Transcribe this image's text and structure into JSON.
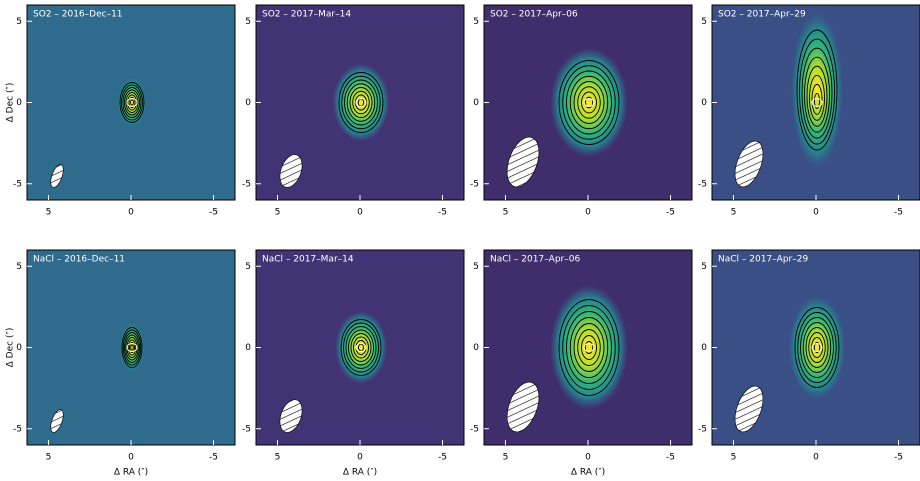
{
  "chart_data": [
    {
      "type": "image",
      "title": "SO2 – 2016–Dec–11",
      "ylabel": "Δ Dec (″)",
      "xlim": [
        6.3,
        -6.3
      ],
      "ylim": [
        -6,
        6
      ],
      "xticks": [
        5,
        0,
        -5
      ],
      "yticks": [
        5,
        0,
        -5
      ]
    },
    {
      "type": "image",
      "title": "SO2 – 2017–Mar–14",
      "xlim": [
        6.3,
        -6.3
      ],
      "ylim": [
        -6,
        6
      ],
      "xticks": [
        5,
        0,
        -5
      ],
      "yticks": [
        5,
        0,
        -5
      ]
    },
    {
      "type": "image",
      "title": "SO2 – 2017–Apr–06",
      "xlim": [
        6.3,
        -6.3
      ],
      "ylim": [
        -6,
        6
      ],
      "xticks": [
        5,
        0,
        -5
      ],
      "yticks": [
        5,
        0,
        -5
      ]
    },
    {
      "type": "image",
      "title": "SO2 – 2017–Apr–29",
      "xlim": [
        6.3,
        -6.3
      ],
      "ylim": [
        -6,
        6
      ],
      "xticks": [
        5,
        0,
        -5
      ],
      "yticks": [
        5,
        0,
        -5
      ]
    },
    {
      "type": "image",
      "title": "NaCl – 2016–Dec–11",
      "ylabel": "Δ Dec (″)",
      "xlabel": "Δ RA (″)",
      "xlim": [
        6.3,
        -6.3
      ],
      "ylim": [
        -6,
        6
      ],
      "xticks": [
        5,
        0,
        -5
      ],
      "yticks": [
        5,
        0,
        -5
      ]
    },
    {
      "type": "image",
      "title": "NaCl – 2017–Mar–14",
      "xlabel": "Δ RA (″)",
      "xlim": [
        6.3,
        -6.3
      ],
      "ylim": [
        -6,
        6
      ],
      "xticks": [
        5,
        0,
        -5
      ],
      "yticks": [
        5,
        0,
        -5
      ]
    },
    {
      "type": "image",
      "title": "NaCl – 2017–Apr–06",
      "xlabel": "Δ RA (″)",
      "xlim": [
        6.3,
        -6.3
      ],
      "ylim": [
        -6,
        6
      ],
      "xticks": [
        5,
        0,
        -5
      ],
      "yticks": [
        5,
        0,
        -5
      ]
    },
    {
      "type": "image",
      "title": "NaCl – 2017–Apr–29",
      "xlim": [
        6.3,
        -6.3
      ],
      "ylim": [
        -6,
        6
      ],
      "xticks": [
        5,
        0,
        -5
      ],
      "yticks": [
        5,
        0,
        -5
      ]
    }
  ]
}
